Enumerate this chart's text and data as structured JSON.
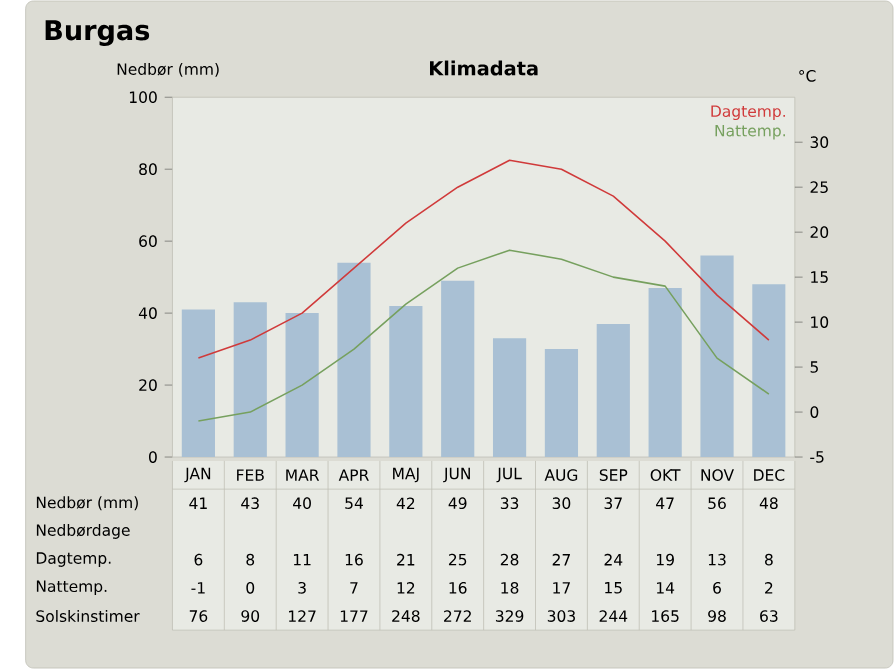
{
  "chart_data": {
    "type": "bar",
    "title": "Burgas",
    "subtitle": "Klimadata",
    "ylabel": "Nedbør (mm)",
    "y2label": "°C",
    "categories": [
      "JAN",
      "FEB",
      "MAR",
      "APR",
      "MAJ",
      "JUN",
      "JUL",
      "AUG",
      "SEP",
      "OKT",
      "NOV",
      "DEC"
    ],
    "series": [
      {
        "color": "#a9c0d4",
        "values": [
          41,
          43,
          40,
          54,
          42,
          49,
          33,
          30,
          37,
          47,
          56,
          48
        ]
      },
      {
        "type": "line",
        "values": [
          null,
          null,
          null,
          null,
          null,
          null,
          null,
          null,
          null,
          null,
          null,
          null
        ]
      },
      {
        "name": "Dagtemp.",
        "type": "line",
        "axis": "y2",
        "color": "#d03a3a",
        "values": [
          6,
          8,
          11,
          16,
          21,
          25,
          28,
          27,
          24,
          19,
          13,
          8
        ]
      },
      {
        "name": "Nattemp.",
        "type": "line",
        "axis": "y2",
        "color": "#76a05e",
        "values": [
          -1,
          0,
          3,
          7,
          12,
          16,
          18,
          17,
          15,
          14,
          6,
          2
        ]
      },
      {
        "type": "line",
        "values": [
          null,
          null,
          null,
          null,
          null,
          null,
          null,
          null,
          null,
          null,
          null,
          null
        ],
        "value_labels": [
          "76",
          "90",
          "127",
          "177",
          "248",
          "272",
          "329",
          "303",
          "244",
          "165",
          "98",
          "63"
        ]
      }
    ],
    "annotations": [
      "Nedbør (mm)",
      "Nedbørdage",
      "Dagtemp.",
      "Nattemp.",
      "Solskinstimer"
    ],
    "ylim": [
      0,
      100
    ],
    "yticks": [
      0,
      20,
      40,
      60,
      80,
      100
    ],
    "y2lim": [
      -5,
      35
    ],
    "y2ticks": [
      -5,
      0,
      5,
      10,
      15,
      20,
      25,
      30
    ],
    "data_labels": true,
    "legend": "top right",
    "grid": false
  }
}
